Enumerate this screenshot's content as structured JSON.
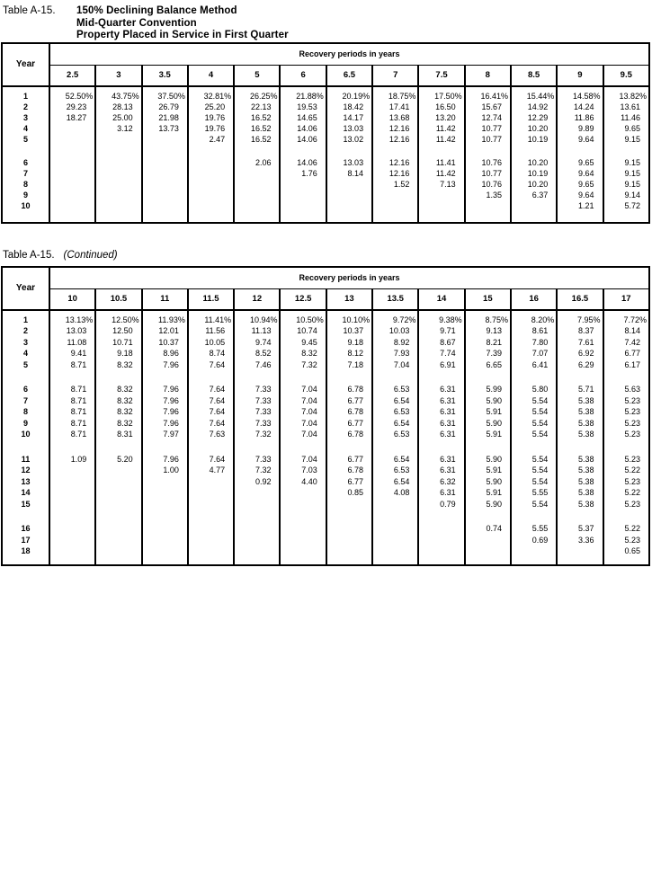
{
  "titles": {
    "table_label": "Table A-15.",
    "line1": "150% Declining Balance Method",
    "line2": "Mid-Quarter Convention",
    "line3": "Property Placed in Service in First Quarter",
    "continued_label": "Table A-15.",
    "continued_suffix": "(Continued)"
  },
  "tables": [
    {
      "name": "table-a15-part1",
      "year_header": "Year",
      "span_header": "Recovery periods in years",
      "columns": [
        "2.5",
        "3",
        "3.5",
        "4",
        "5",
        "6",
        "6.5",
        "7",
        "7.5",
        "8",
        "8.5",
        "9",
        "9.5"
      ],
      "groups": [
        [
          {
            "year": "1",
            "values": [
              "52.50%",
              "43.75%",
              "37.50%",
              "32.81%",
              "26.25%",
              "21.88%",
              "20.19%",
              "18.75%",
              "17.50%",
              "16.41%",
              "15.44%",
              "14.58%",
              "13.82%"
            ]
          },
          {
            "year": "2",
            "values": [
              "29.23",
              "28.13",
              "26.79",
              "25.20",
              "22.13",
              "19.53",
              "18.42",
              "17.41",
              "16.50",
              "15.67",
              "14.92",
              "14.24",
              "13.61"
            ]
          },
          {
            "year": "3",
            "values": [
              "18.27",
              "25.00",
              "21.98",
              "19.76",
              "16.52",
              "14.65",
              "14.17",
              "13.68",
              "13.20",
              "12.74",
              "12.29",
              "11.86",
              "11.46"
            ]
          },
          {
            "year": "4",
            "values": [
              "",
              "3.12",
              "13.73",
              "19.76",
              "16.52",
              "14.06",
              "13.03",
              "12.16",
              "11.42",
              "10.77",
              "10.20",
              "9.89",
              "9.65"
            ]
          },
          {
            "year": "5",
            "values": [
              "",
              "",
              "",
              "2.47",
              "16.52",
              "14.06",
              "13.02",
              "12.16",
              "11.42",
              "10.77",
              "10.19",
              "9.64",
              "9.15"
            ]
          }
        ],
        [
          {
            "year": "6",
            "values": [
              "",
              "",
              "",
              "",
              "2.06",
              "14.06",
              "13.03",
              "12.16",
              "11.41",
              "10.76",
              "10.20",
              "9.65",
              "9.15"
            ]
          },
          {
            "year": "7",
            "values": [
              "",
              "",
              "",
              "",
              "",
              "1.76",
              "8.14",
              "12.16",
              "11.42",
              "10.77",
              "10.19",
              "9.64",
              "9.15"
            ]
          },
          {
            "year": "8",
            "values": [
              "",
              "",
              "",
              "",
              "",
              "",
              "",
              "1.52",
              "7.13",
              "10.76",
              "10.20",
              "9.65",
              "9.15"
            ]
          },
          {
            "year": "9",
            "values": [
              "",
              "",
              "",
              "",
              "",
              "",
              "",
              "",
              "",
              "1.35",
              "6.37",
              "9.64",
              "9.14"
            ]
          },
          {
            "year": "10",
            "values": [
              "",
              "",
              "",
              "",
              "",
              "",
              "",
              "",
              "",
              "",
              "",
              "1.21",
              "5.72"
            ]
          }
        ]
      ]
    },
    {
      "name": "table-a15-part2",
      "year_header": "Year",
      "span_header": "Recovery periods in years",
      "columns": [
        "10",
        "10.5",
        "11",
        "11.5",
        "12",
        "12.5",
        "13",
        "13.5",
        "14",
        "15",
        "16",
        "16.5",
        "17"
      ],
      "groups": [
        [
          {
            "year": "1",
            "values": [
              "13.13%",
              "12.50%",
              "11.93%",
              "11.41%",
              "10.94%",
              "10.50%",
              "10.10%",
              "9.72%",
              "9.38%",
              "8.75%",
              "8.20%",
              "7.95%",
              "7.72%"
            ]
          },
          {
            "year": "2",
            "values": [
              "13.03",
              "12.50",
              "12.01",
              "11.56",
              "11.13",
              "10.74",
              "10.37",
              "10.03",
              "9.71",
              "9.13",
              "8.61",
              "8.37",
              "8.14"
            ]
          },
          {
            "year": "3",
            "values": [
              "11.08",
              "10.71",
              "10.37",
              "10.05",
              "9.74",
              "9.45",
              "9.18",
              "8.92",
              "8.67",
              "8.21",
              "7.80",
              "7.61",
              "7.42"
            ]
          },
          {
            "year": "4",
            "values": [
              "9.41",
              "9.18",
              "8.96",
              "8.74",
              "8.52",
              "8.32",
              "8.12",
              "7.93",
              "7.74",
              "7.39",
              "7.07",
              "6.92",
              "6.77"
            ]
          },
          {
            "year": "5",
            "values": [
              "8.71",
              "8.32",
              "7.96",
              "7.64",
              "7.46",
              "7.32",
              "7.18",
              "7.04",
              "6.91",
              "6.65",
              "6.41",
              "6.29",
              "6.17"
            ]
          }
        ],
        [
          {
            "year": "6",
            "values": [
              "8.71",
              "8.32",
              "7.96",
              "7.64",
              "7.33",
              "7.04",
              "6.78",
              "6.53",
              "6.31",
              "5.99",
              "5.80",
              "5.71",
              "5.63"
            ]
          },
          {
            "year": "7",
            "values": [
              "8.71",
              "8.32",
              "7.96",
              "7.64",
              "7.33",
              "7.04",
              "6.77",
              "6.54",
              "6.31",
              "5.90",
              "5.54",
              "5.38",
              "5.23"
            ]
          },
          {
            "year": "8",
            "values": [
              "8.71",
              "8.32",
              "7.96",
              "7.64",
              "7.33",
              "7.04",
              "6.78",
              "6.53",
              "6.31",
              "5.91",
              "5.54",
              "5.38",
              "5.23"
            ]
          },
          {
            "year": "9",
            "values": [
              "8.71",
              "8.32",
              "7.96",
              "7.64",
              "7.33",
              "7.04",
              "6.77",
              "6.54",
              "6.31",
              "5.90",
              "5.54",
              "5.38",
              "5.23"
            ]
          },
          {
            "year": "10",
            "values": [
              "8.71",
              "8.31",
              "7.97",
              "7.63",
              "7.32",
              "7.04",
              "6.78",
              "6.53",
              "6.31",
              "5.91",
              "5.54",
              "5.38",
              "5.23"
            ]
          }
        ],
        [
          {
            "year": "11",
            "values": [
              "1.09",
              "5.20",
              "7.96",
              "7.64",
              "7.33",
              "7.04",
              "6.77",
              "6.54",
              "6.31",
              "5.90",
              "5.54",
              "5.38",
              "5.23"
            ]
          },
          {
            "year": "12",
            "values": [
              "",
              "",
              "1.00",
              "4.77",
              "7.32",
              "7.03",
              "6.78",
              "6.53",
              "6.31",
              "5.91",
              "5.54",
              "5.38",
              "5.22"
            ]
          },
          {
            "year": "13",
            "values": [
              "",
              "",
              "",
              "",
              "0.92",
              "4.40",
              "6.77",
              "6.54",
              "6.32",
              "5.90",
              "5.54",
              "5.38",
              "5.23"
            ]
          },
          {
            "year": "14",
            "values": [
              "",
              "",
              "",
              "",
              "",
              "",
              "0.85",
              "4.08",
              "6.31",
              "5.91",
              "5.55",
              "5.38",
              "5.22"
            ]
          },
          {
            "year": "15",
            "values": [
              "",
              "",
              "",
              "",
              "",
              "",
              "",
              "",
              "0.79",
              "5.90",
              "5.54",
              "5.38",
              "5.23"
            ]
          }
        ],
        [
          {
            "year": "16",
            "values": [
              "",
              "",
              "",
              "",
              "",
              "",
              "",
              "",
              "",
              "0.74",
              "5.55",
              "5.37",
              "5.22"
            ]
          },
          {
            "year": "17",
            "values": [
              "",
              "",
              "",
              "",
              "",
              "",
              "",
              "",
              "",
              "",
              "0.69",
              "3.36",
              "5.23"
            ]
          },
          {
            "year": "18",
            "values": [
              "",
              "",
              "",
              "",
              "",
              "",
              "",
              "",
              "",
              "",
              "",
              "",
              "0.65"
            ]
          }
        ]
      ]
    }
  ]
}
